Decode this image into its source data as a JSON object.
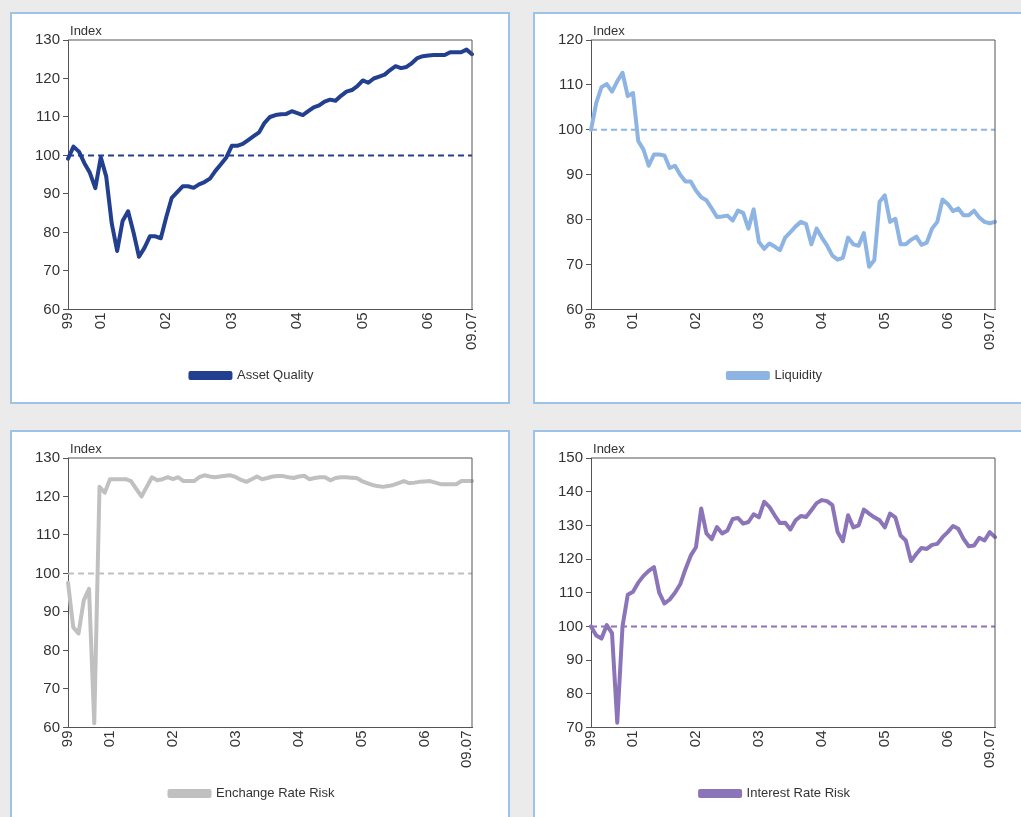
{
  "chart_data": [
    {
      "type": "line",
      "ylabel": "Index",
      "legend": "bottom",
      "grid": false,
      "line_style": "solid",
      "categories": [
        "99",
        null,
        null,
        null,
        null,
        null,
        "01",
        null,
        null,
        null,
        null,
        null,
        null,
        null,
        null,
        null,
        null,
        null,
        "02",
        null,
        null,
        null,
        null,
        null,
        null,
        null,
        null,
        null,
        null,
        null,
        "03",
        null,
        null,
        null,
        null,
        null,
        null,
        null,
        null,
        null,
        null,
        null,
        "04",
        null,
        null,
        null,
        null,
        null,
        null,
        null,
        null,
        null,
        null,
        null,
        "05",
        null,
        null,
        null,
        null,
        null,
        null,
        null,
        null,
        null,
        null,
        null,
        "06",
        null,
        null,
        null,
        null,
        null,
        null,
        null,
        "09.07"
      ],
      "ylim": [
        60,
        130
      ],
      "yticks": [
        60,
        70,
        80,
        90,
        100,
        110,
        120,
        130
      ],
      "ref_lines": [
        {
          "axis": "y",
          "value": 100,
          "color": "#233f8f",
          "line_style": "dashed"
        }
      ],
      "series": [
        {
          "name": "Asset Quality",
          "color": "#233f8f",
          "values": [
            99.2,
            102.3,
            101.0,
            98,
            95.5,
            91.5,
            99.5,
            94.5,
            82.4,
            75.2,
            83,
            85.5,
            80,
            73.7,
            76,
            79,
            79,
            78.5,
            84,
            89,
            90.5,
            92,
            92,
            91.6,
            92.5,
            93.1,
            94,
            96,
            97.7,
            99.5,
            102.5,
            102.5,
            103,
            104,
            105,
            106,
            108.5,
            110,
            110.5,
            110.7,
            110.8,
            111.5,
            111,
            110.5,
            111.5,
            112.5,
            113,
            114,
            114.5,
            114.2,
            115.5,
            116.6,
            117,
            118,
            119.5,
            118.9,
            120,
            120.5,
            121,
            122.2,
            123.2,
            122.7,
            123,
            124,
            125.3,
            125.8,
            126,
            126.1,
            126.1,
            126.1,
            126.8,
            126.8,
            126.8,
            127.5,
            126.3
          ]
        }
      ]
    },
    {
      "type": "line",
      "ylabel": "Index",
      "legend": "bottom",
      "grid": false,
      "line_style": "solid",
      "categories": [
        "99",
        null,
        null,
        null,
        null,
        null,
        null,
        null,
        "01",
        null,
        null,
        null,
        null,
        null,
        null,
        null,
        null,
        null,
        null,
        null,
        "02",
        null,
        null,
        null,
        null,
        null,
        null,
        null,
        null,
        null,
        null,
        null,
        "03",
        null,
        null,
        null,
        null,
        null,
        null,
        null,
        null,
        null,
        null,
        null,
        "04",
        null,
        null,
        null,
        null,
        null,
        null,
        null,
        null,
        null,
        null,
        null,
        "05",
        null,
        null,
        null,
        null,
        null,
        null,
        null,
        null,
        null,
        null,
        null,
        "06",
        null,
        null,
        null,
        null,
        null,
        null,
        null,
        "09.07",
        null
      ],
      "ylim": [
        60,
        120
      ],
      "yticks": [
        60,
        70,
        80,
        90,
        100,
        110,
        120
      ],
      "ref_lines": [
        {
          "axis": "y",
          "value": 100,
          "color": "#8db4e2",
          "line_style": "dashed"
        }
      ],
      "series": [
        {
          "name": "Liquidity",
          "color": "#8db4e2",
          "values": [
            100,
            106,
            109.5,
            110.2,
            108.5,
            110.8,
            112.7,
            107.5,
            108.2,
            97.5,
            95.6,
            92,
            94.5,
            94.5,
            94.3,
            91.5,
            92,
            90,
            88.5,
            88.5,
            86.5,
            85,
            84.3,
            82.5,
            80.6,
            80.7,
            80.9,
            79.8,
            82,
            81.5,
            78,
            82.3,
            75,
            73.5,
            74.7,
            74,
            73.2,
            76,
            77.2,
            78.5,
            79.5,
            79,
            74.5,
            78,
            76,
            74.2,
            72,
            71.1,
            71.5,
            76,
            74.5,
            74.2,
            77,
            69.5,
            71,
            84,
            85.4,
            79.5,
            80.2,
            74.5,
            74.5,
            75.5,
            76.2,
            74.4,
            74.9,
            78,
            79.5,
            84.5,
            83.5,
            81.9,
            82.5,
            81,
            81,
            82,
            80.5,
            79.5,
            79.2,
            79.5
          ]
        }
      ]
    },
    {
      "type": "line",
      "ylabel": "Index",
      "legend": "bottom",
      "grid": false,
      "line_style": "solid",
      "categories": [
        "99",
        null,
        null,
        null,
        null,
        null,
        null,
        null,
        "01",
        null,
        null,
        null,
        null,
        null,
        null,
        null,
        null,
        null,
        null,
        null,
        "02",
        null,
        null,
        null,
        null,
        null,
        null,
        null,
        null,
        null,
        null,
        null,
        "03",
        null,
        null,
        null,
        null,
        null,
        null,
        null,
        null,
        null,
        null,
        null,
        "04",
        null,
        null,
        null,
        null,
        null,
        null,
        null,
        null,
        null,
        null,
        null,
        "05",
        null,
        null,
        null,
        null,
        null,
        null,
        null,
        null,
        null,
        null,
        null,
        "06",
        null,
        null,
        null,
        null,
        null,
        null,
        null,
        "09.07",
        null
      ],
      "ylim": [
        60,
        130
      ],
      "yticks": [
        60,
        70,
        80,
        90,
        100,
        110,
        120,
        130
      ],
      "ref_lines": [
        {
          "axis": "y",
          "value": 100,
          "color": "#c0c0c0",
          "line_style": "dashed"
        }
      ],
      "series": [
        {
          "name": "Enchange Rate Risk",
          "color": "#c0c0c0",
          "values": [
            97.6,
            86,
            84.4,
            93,
            96,
            61.1,
            122.5,
            121,
            124.5,
            124.5,
            124.5,
            124.5,
            124,
            122,
            120,
            122.5,
            125,
            124.2,
            124.5,
            125,
            124.5,
            125,
            124,
            124,
            124,
            125,
            125.5,
            125.2,
            125,
            125.2,
            125.4,
            125.5,
            125,
            124.3,
            123.8,
            124.5,
            125.2,
            124.5,
            124.8,
            125.2,
            125.3,
            125.3,
            125,
            124.8,
            125.2,
            125.4,
            124.5,
            124.8,
            125,
            125,
            124.2,
            124.8,
            125,
            125,
            124.9,
            124.8,
            124,
            123.5,
            123,
            122.7,
            122.5,
            122.7,
            123,
            123.5,
            124,
            123.5,
            123.6,
            123.8,
            123.9,
            124,
            123.6,
            123.2,
            123.2,
            123.2,
            123.2,
            124,
            124,
            124
          ]
        }
      ]
    },
    {
      "type": "line",
      "ylabel": "Index",
      "legend": "bottom",
      "grid": false,
      "line_style": "solid",
      "categories": [
        "99",
        null,
        null,
        null,
        null,
        null,
        null,
        null,
        "01",
        null,
        null,
        null,
        null,
        null,
        null,
        null,
        null,
        null,
        null,
        null,
        "02",
        null,
        null,
        null,
        null,
        null,
        null,
        null,
        null,
        null,
        null,
        null,
        "03",
        null,
        null,
        null,
        null,
        null,
        null,
        null,
        null,
        null,
        null,
        null,
        "04",
        null,
        null,
        null,
        null,
        null,
        null,
        null,
        null,
        null,
        null,
        null,
        "05",
        null,
        null,
        null,
        null,
        null,
        null,
        null,
        null,
        null,
        null,
        null,
        "06",
        null,
        null,
        null,
        null,
        null,
        null,
        null,
        "09.07",
        null
      ],
      "ylim": [
        70,
        150
      ],
      "yticks": [
        70,
        80,
        90,
        100,
        110,
        120,
        130,
        140,
        150
      ],
      "ref_lines": [
        {
          "axis": "y",
          "value": 100,
          "color": "#8b74b8",
          "line_style": "dashed"
        }
      ],
      "series": [
        {
          "name": "Interest Rate Risk",
          "color": "#8b74b8",
          "values": [
            100,
            97.3,
            96.4,
            100.4,
            98,
            71.4,
            100,
            109.4,
            110.3,
            113,
            115,
            116.5,
            117.6,
            110,
            106.8,
            108,
            110,
            112.5,
            117,
            121,
            123.5,
            135,
            127.6,
            125.9,
            129.5,
            127.6,
            128.5,
            131.9,
            132.2,
            130.5,
            131,
            133.3,
            132.4,
            137,
            135.5,
            133,
            130.7,
            130.8,
            128.8,
            131.5,
            132.8,
            132.5,
            134.5,
            136.6,
            137.5,
            137.2,
            136,
            128,
            125.3,
            133,
            129.4,
            130,
            134.7,
            133.5,
            132.4,
            131.5,
            129.4,
            133.5,
            132.4,
            127,
            125.5,
            119.4,
            121.5,
            123.3,
            123,
            124.2,
            124.5,
            126.5,
            128,
            129.8,
            129,
            126,
            123.8,
            124,
            126.3,
            125.5,
            128,
            126.5
          ]
        }
      ]
    }
  ]
}
